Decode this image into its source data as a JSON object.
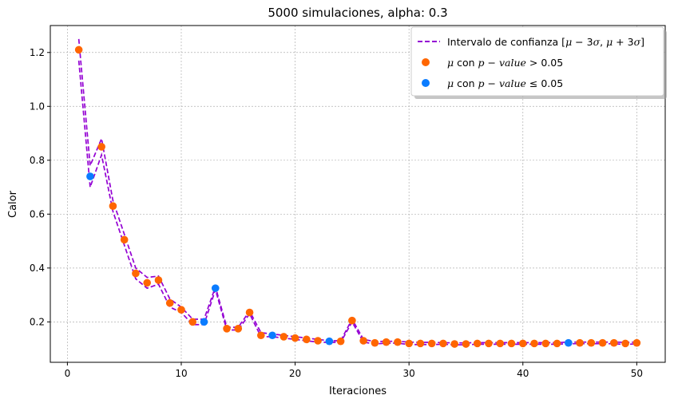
{
  "chart_data": {
    "type": "scatter",
    "title": "5000 simulaciones, alpha: 0.3",
    "xlabel": "Iteraciones",
    "ylabel": "Calor",
    "xlim": [
      -1.5,
      52.5
    ],
    "ylim": [
      0.05,
      1.3
    ],
    "xticks": [
      0,
      10,
      20,
      30,
      40,
      50
    ],
    "yticks": [
      0.2,
      0.4,
      0.6,
      0.8,
      1.0,
      1.2
    ],
    "xtick_labels": [
      "0",
      "10",
      "20",
      "30",
      "40",
      "50"
    ],
    "ytick_labels": [
      "0.2",
      "0.4",
      "0.6",
      "0.8",
      "1.0",
      "1.2"
    ],
    "grid": true,
    "legend_position": "top-right",
    "legend": {
      "interval": {
        "prefix": "Intervalo de confianza [",
        "mu1": "μ",
        "minus": " − 3",
        "sigma1": "σ",
        "comma": ", ",
        "mu2": "μ",
        "plus": " + 3",
        "sigma2": "σ",
        "suffix": "]"
      },
      "orange": {
        "mu": "μ",
        "mid": " con ",
        "pvalue": "p − value",
        "cond": " > 0.05"
      },
      "blue": {
        "mu": "μ",
        "mid": " con ",
        "pvalue": "p − value",
        "cond": " ≤ 0.05"
      }
    },
    "colors": {
      "interval": "#9400d3",
      "orange": "#ff6600",
      "blue": "#0a7cff"
    },
    "x": [
      1,
      2,
      3,
      4,
      5,
      6,
      7,
      8,
      9,
      10,
      11,
      12,
      13,
      14,
      15,
      16,
      17,
      18,
      19,
      20,
      21,
      22,
      23,
      24,
      25,
      26,
      27,
      28,
      29,
      30,
      31,
      32,
      33,
      34,
      35,
      36,
      37,
      38,
      39,
      40,
      41,
      42,
      43,
      44,
      45,
      46,
      47,
      48,
      49,
      50
    ],
    "mu": [
      1.21,
      0.74,
      0.85,
      0.63,
      0.505,
      0.38,
      0.345,
      0.355,
      0.27,
      0.245,
      0.2,
      0.2,
      0.325,
      0.175,
      0.175,
      0.235,
      0.15,
      0.15,
      0.145,
      0.14,
      0.135,
      0.13,
      0.128,
      0.128,
      0.205,
      0.13,
      0.122,
      0.125,
      0.125,
      0.12,
      0.12,
      0.12,
      0.12,
      0.118,
      0.118,
      0.12,
      0.12,
      0.12,
      0.12,
      0.12,
      0.12,
      0.12,
      0.12,
      0.122,
      0.122,
      0.122,
      0.122,
      0.122,
      0.12,
      0.122
    ],
    "pvalue_le_005": [
      false,
      true,
      false,
      false,
      false,
      false,
      false,
      false,
      false,
      false,
      false,
      true,
      true,
      false,
      false,
      false,
      false,
      true,
      false,
      false,
      false,
      false,
      true,
      false,
      false,
      false,
      false,
      false,
      false,
      false,
      false,
      false,
      false,
      false,
      false,
      false,
      false,
      false,
      false,
      false,
      false,
      false,
      false,
      true,
      false,
      false,
      false,
      false,
      false,
      false
    ],
    "upper": [
      1.25,
      0.78,
      0.88,
      0.65,
      0.525,
      0.4,
      0.365,
      0.37,
      0.285,
      0.255,
      0.21,
      0.21,
      0.33,
      0.18,
      0.18,
      0.24,
      0.16,
      0.155,
      0.15,
      0.145,
      0.14,
      0.135,
      0.13,
      0.13,
      0.21,
      0.135,
      0.127,
      0.128,
      0.128,
      0.125,
      0.124,
      0.124,
      0.123,
      0.122,
      0.122,
      0.123,
      0.123,
      0.123,
      0.123,
      0.123,
      0.123,
      0.123,
      0.123,
      0.125,
      0.125,
      0.125,
      0.125,
      0.125,
      0.124,
      0.125
    ],
    "lower": [
      1.17,
      0.7,
      0.82,
      0.61,
      0.485,
      0.36,
      0.325,
      0.34,
      0.255,
      0.235,
      0.19,
      0.19,
      0.32,
      0.17,
      0.17,
      0.23,
      0.145,
      0.145,
      0.14,
      0.135,
      0.13,
      0.125,
      0.124,
      0.124,
      0.2,
      0.125,
      0.118,
      0.121,
      0.121,
      0.116,
      0.116,
      0.116,
      0.117,
      0.115,
      0.115,
      0.117,
      0.117,
      0.117,
      0.117,
      0.117,
      0.117,
      0.117,
      0.117,
      0.119,
      0.119,
      0.119,
      0.119,
      0.119,
      0.116,
      0.119
    ]
  }
}
